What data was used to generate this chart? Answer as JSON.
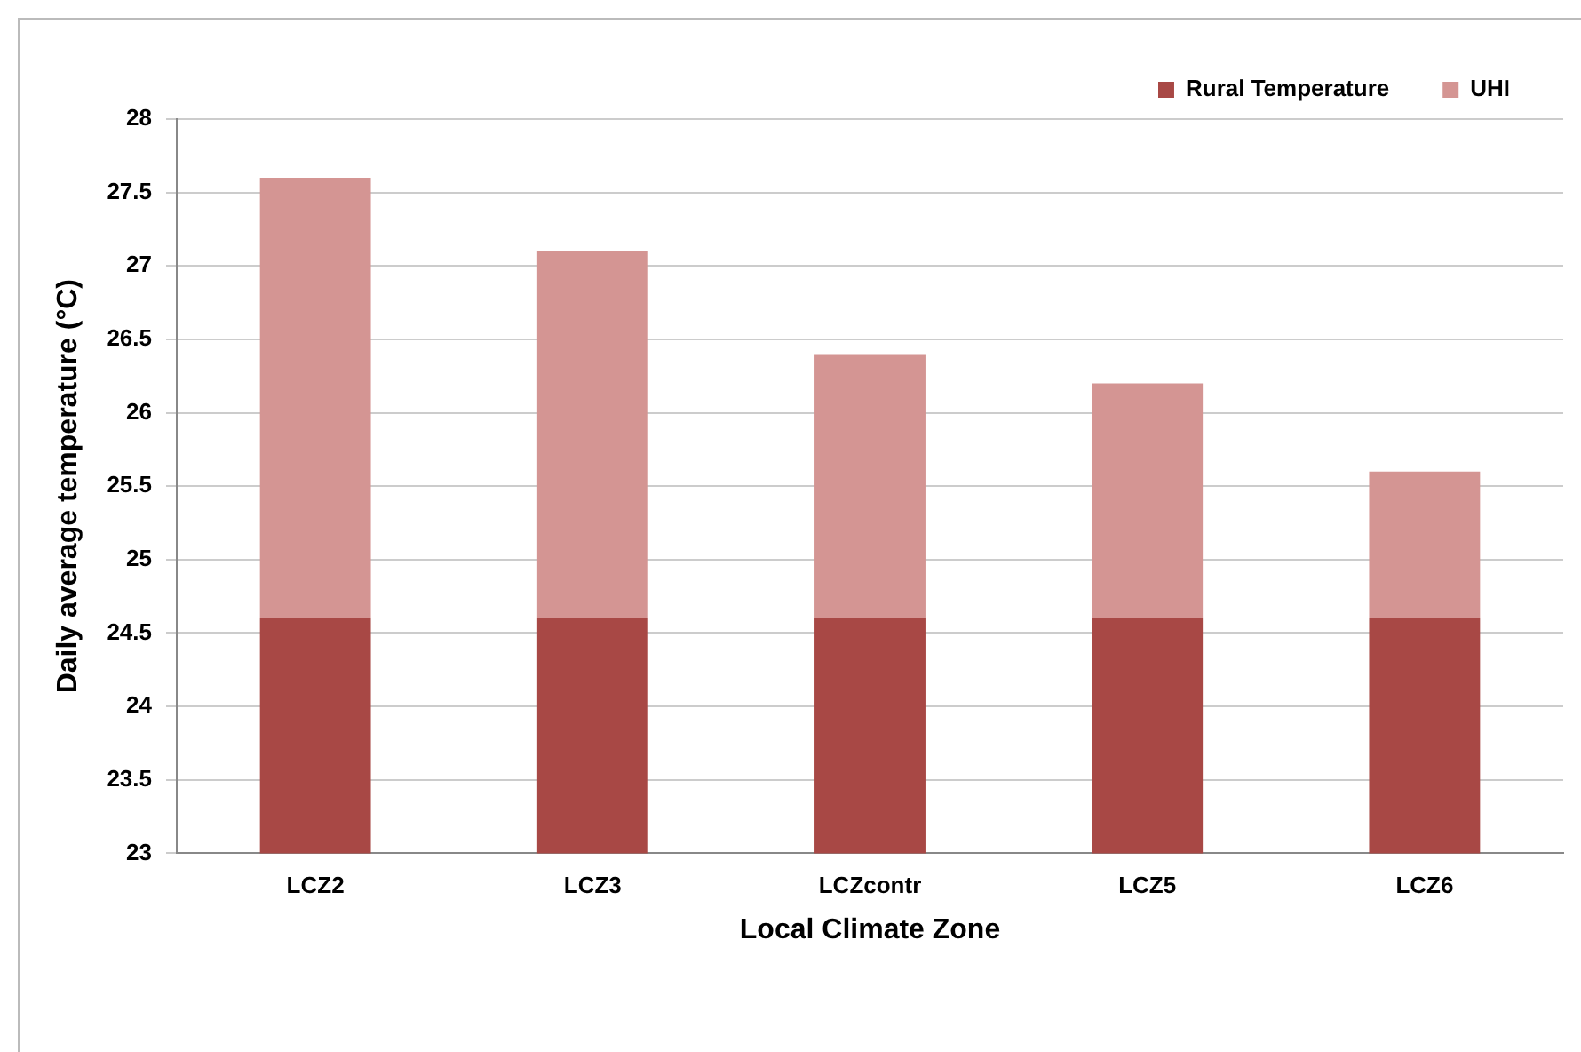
{
  "chart_data": {
    "type": "bar",
    "stacked": true,
    "xlabel": "Local Climate Zone",
    "ylabel": "Daily average temperature (°C)",
    "categories": [
      "LCZ2",
      "LCZ3",
      "LCZcontr",
      "LCZ5",
      "LCZ6"
    ],
    "series": [
      {
        "name": "Rural Temperature",
        "color": "#a84845",
        "values": [
          24.6,
          24.6,
          24.6,
          24.6,
          24.6
        ]
      },
      {
        "name": "UHI",
        "color": "#d49593",
        "base": [
          24.6,
          24.6,
          24.6,
          24.6,
          24.6
        ],
        "values": [
          3.0,
          2.5,
          1.8,
          1.6,
          1.0
        ]
      }
    ],
    "ylim": [
      23,
      28
    ],
    "yticks": [
      23,
      23.5,
      24,
      24.5,
      25,
      25.5,
      26,
      26.5,
      27,
      27.5,
      28
    ],
    "grid": "y",
    "legend": "top right"
  }
}
